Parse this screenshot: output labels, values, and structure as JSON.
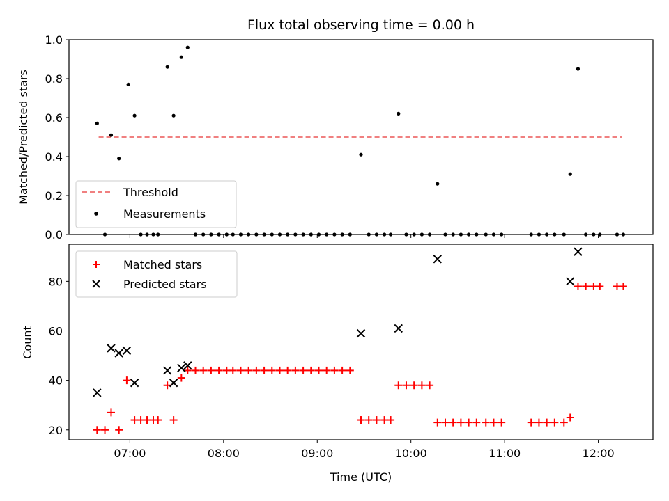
{
  "chart_data": [
    {
      "type": "scatter",
      "title": "Flux total observing time = 0.00 h",
      "xlabel": "",
      "ylabel": "Matched/Predicted stars",
      "xlim": [
        "06:21",
        "12:35"
      ],
      "ylim": [
        0,
        1.0
      ],
      "yticks": [
        0.0,
        0.2,
        0.4,
        0.6,
        0.8,
        1.0
      ],
      "ytick_labels": [
        "0.0",
        "0.2",
        "0.4",
        "0.6",
        "0.8",
        "1.0"
      ],
      "legend_position": "lower-left",
      "threshold": {
        "name": "Threshold",
        "value": 0.5,
        "x_start": "06:40",
        "x_end": "12:15",
        "color": "#f08080",
        "style": "dashed"
      },
      "series": [
        {
          "name": "Measurements",
          "color": "#000000",
          "marker": "dot",
          "points": [
            [
              "06:39",
              0.57
            ],
            [
              "06:44",
              0.0
            ],
            [
              "06:48",
              0.51
            ],
            [
              "06:53",
              0.39
            ],
            [
              "06:59",
              0.77
            ],
            [
              "07:03",
              0.61
            ],
            [
              "07:07",
              0.0
            ],
            [
              "07:11",
              0.0
            ],
            [
              "07:15",
              0.0
            ],
            [
              "07:18",
              0.0
            ],
            [
              "07:24",
              0.86
            ],
            [
              "07:28",
              0.61
            ],
            [
              "07:33",
              0.91
            ],
            [
              "07:37",
              0.96
            ],
            [
              "07:42",
              0.0
            ],
            [
              "07:47",
              0.0
            ],
            [
              "07:52",
              0.0
            ],
            [
              "07:57",
              0.0
            ],
            [
              "08:02",
              0.0
            ],
            [
              "08:06",
              0.0
            ],
            [
              "08:11",
              0.0
            ],
            [
              "08:16",
              0.0
            ],
            [
              "08:21",
              0.0
            ],
            [
              "08:26",
              0.0
            ],
            [
              "08:31",
              0.0
            ],
            [
              "08:36",
              0.0
            ],
            [
              "08:41",
              0.0
            ],
            [
              "08:46",
              0.0
            ],
            [
              "08:51",
              0.0
            ],
            [
              "08:56",
              0.0
            ],
            [
              "09:01",
              0.0
            ],
            [
              "09:06",
              0.0
            ],
            [
              "09:11",
              0.0
            ],
            [
              "09:16",
              0.0
            ],
            [
              "09:21",
              0.0
            ],
            [
              "09:28",
              0.41
            ],
            [
              "09:33",
              0.0
            ],
            [
              "09:38",
              0.0
            ],
            [
              "09:43",
              0.0
            ],
            [
              "09:47",
              0.0
            ],
            [
              "09:52",
              0.62
            ],
            [
              "09:57",
              0.0
            ],
            [
              "10:02",
              0.0
            ],
            [
              "10:07",
              0.0
            ],
            [
              "10:12",
              0.0
            ],
            [
              "10:17",
              0.26
            ],
            [
              "10:22",
              0.0
            ],
            [
              "10:27",
              0.0
            ],
            [
              "10:32",
              0.0
            ],
            [
              "10:37",
              0.0
            ],
            [
              "10:42",
              0.0
            ],
            [
              "10:48",
              0.0
            ],
            [
              "10:53",
              0.0
            ],
            [
              "10:58",
              0.0
            ],
            [
              "11:17",
              0.0
            ],
            [
              "11:22",
              0.0
            ],
            [
              "11:27",
              0.0
            ],
            [
              "11:32",
              0.0
            ],
            [
              "11:38",
              0.0
            ],
            [
              "11:42",
              0.31
            ],
            [
              "11:47",
              0.85
            ],
            [
              "11:52",
              0.0
            ],
            [
              "11:57",
              0.0
            ],
            [
              "12:01",
              0.0
            ],
            [
              "12:12",
              0.0
            ],
            [
              "12:16",
              0.0
            ]
          ]
        }
      ]
    },
    {
      "type": "scatter",
      "title": "",
      "xlabel": "Time (UTC)",
      "ylabel": "Count",
      "xlim": [
        "06:21",
        "12:35"
      ],
      "ylim": [
        16,
        95
      ],
      "yticks": [
        20,
        40,
        60,
        80
      ],
      "ytick_labels": [
        "20",
        "40",
        "60",
        "80"
      ],
      "xticks": [
        "07:00",
        "08:00",
        "09:00",
        "10:00",
        "11:00",
        "12:00"
      ],
      "xtick_labels": [
        "07:00",
        "08:00",
        "09:00",
        "10:00",
        "11:00",
        "12:00"
      ],
      "legend_position": "upper-left",
      "series": [
        {
          "name": "Matched stars",
          "color": "#ff0000",
          "marker": "plus",
          "points": [
            [
              "06:39",
              20
            ],
            [
              "06:44",
              20
            ],
            [
              "06:48",
              27
            ],
            [
              "06:53",
              20
            ],
            [
              "06:58",
              40
            ],
            [
              "07:03",
              24
            ],
            [
              "07:07",
              24
            ],
            [
              "07:11",
              24
            ],
            [
              "07:15",
              24
            ],
            [
              "07:18",
              24
            ],
            [
              "07:24",
              38
            ],
            [
              "07:28",
              24
            ],
            [
              "07:33",
              41
            ],
            [
              "07:37",
              44
            ],
            [
              "07:42",
              44
            ],
            [
              "07:47",
              44
            ],
            [
              "07:52",
              44
            ],
            [
              "07:57",
              44
            ],
            [
              "08:02",
              44
            ],
            [
              "08:06",
              44
            ],
            [
              "08:11",
              44
            ],
            [
              "08:16",
              44
            ],
            [
              "08:21",
              44
            ],
            [
              "08:26",
              44
            ],
            [
              "08:31",
              44
            ],
            [
              "08:36",
              44
            ],
            [
              "08:41",
              44
            ],
            [
              "08:46",
              44
            ],
            [
              "08:51",
              44
            ],
            [
              "08:56",
              44
            ],
            [
              "09:01",
              44
            ],
            [
              "09:06",
              44
            ],
            [
              "09:11",
              44
            ],
            [
              "09:16",
              44
            ],
            [
              "09:21",
              44
            ],
            [
              "09:28",
              24
            ],
            [
              "09:33",
              24
            ],
            [
              "09:38",
              24
            ],
            [
              "09:43",
              24
            ],
            [
              "09:47",
              24
            ],
            [
              "09:52",
              38
            ],
            [
              "09:57",
              38
            ],
            [
              "10:02",
              38
            ],
            [
              "10:07",
              38
            ],
            [
              "10:12",
              38
            ],
            [
              "10:17",
              23
            ],
            [
              "10:22",
              23
            ],
            [
              "10:27",
              23
            ],
            [
              "10:32",
              23
            ],
            [
              "10:37",
              23
            ],
            [
              "10:42",
              23
            ],
            [
              "10:48",
              23
            ],
            [
              "10:53",
              23
            ],
            [
              "10:58",
              23
            ],
            [
              "11:17",
              23
            ],
            [
              "11:22",
              23
            ],
            [
              "11:27",
              23
            ],
            [
              "11:32",
              23
            ],
            [
              "11:38",
              23
            ],
            [
              "11:42",
              25
            ],
            [
              "11:47",
              78
            ],
            [
              "11:52",
              78
            ],
            [
              "11:57",
              78
            ],
            [
              "12:01",
              78
            ],
            [
              "12:12",
              78
            ],
            [
              "12:16",
              78
            ]
          ]
        },
        {
          "name": "Predicted stars",
          "color": "#000000",
          "marker": "x",
          "points": [
            [
              "06:39",
              35
            ],
            [
              "06:48",
              53
            ],
            [
              "06:53",
              51
            ],
            [
              "06:58",
              52
            ],
            [
              "07:03",
              39
            ],
            [
              "07:24",
              44
            ],
            [
              "07:28",
              39
            ],
            [
              "07:33",
              45
            ],
            [
              "07:37",
              46
            ],
            [
              "09:28",
              59
            ],
            [
              "09:52",
              61
            ],
            [
              "10:17",
              89
            ],
            [
              "11:42",
              80
            ],
            [
              "11:47",
              92
            ]
          ]
        }
      ]
    }
  ]
}
